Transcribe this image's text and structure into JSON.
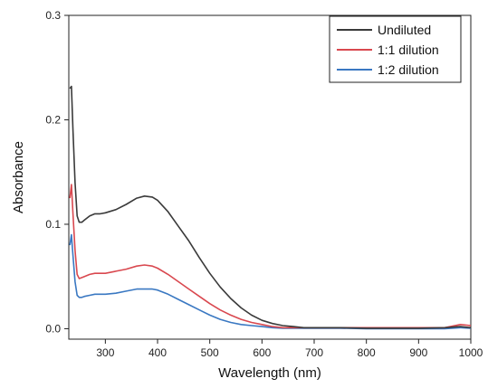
{
  "chart_data": {
    "type": "line",
    "title": "",
    "xlabel": "Wavelength (nm)",
    "ylabel": "Absorbance",
    "xlim": [
      230,
      1000
    ],
    "ylim": [
      -0.01,
      0.3
    ],
    "xticks": [
      300,
      400,
      500,
      600,
      700,
      800,
      900,
      1000
    ],
    "xtick_labels": [
      "300",
      "400",
      "500",
      "600",
      "700",
      "800",
      "900",
      "1000"
    ],
    "yticks": [
      0.0,
      0.1,
      0.2,
      0.3
    ],
    "ytick_labels": [
      "0.0",
      "0.1",
      "0.2",
      "0.3"
    ],
    "grid": false,
    "legend_position": "top-right",
    "x": [
      232,
      235,
      238,
      242,
      246,
      250,
      255,
      260,
      270,
      280,
      290,
      300,
      320,
      340,
      360,
      375,
      390,
      400,
      420,
      440,
      460,
      480,
      500,
      520,
      540,
      560,
      580,
      600,
      620,
      640,
      660,
      680,
      700,
      750,
      800,
      850,
      900,
      950,
      980,
      1000
    ],
    "series": [
      {
        "name": "Undiluted",
        "color": "#3a3a3a",
        "values": [
          0.23,
          0.232,
          0.19,
          0.14,
          0.108,
          0.102,
          0.102,
          0.104,
          0.108,
          0.11,
          0.11,
          0.111,
          0.114,
          0.119,
          0.125,
          0.127,
          0.126,
          0.123,
          0.112,
          0.098,
          0.084,
          0.068,
          0.053,
          0.04,
          0.029,
          0.02,
          0.013,
          0.008,
          0.005,
          0.003,
          0.002,
          0.001,
          0.001,
          0.001,
          0.0005,
          0.0005,
          0.0005,
          0.001,
          0.002,
          0.001
        ]
      },
      {
        "name": "1:1 dilution",
        "color": "#d9484f",
        "values": [
          0.125,
          0.138,
          0.11,
          0.075,
          0.052,
          0.048,
          0.049,
          0.05,
          0.052,
          0.053,
          0.053,
          0.053,
          0.055,
          0.057,
          0.06,
          0.061,
          0.06,
          0.058,
          0.052,
          0.045,
          0.038,
          0.031,
          0.024,
          0.018,
          0.013,
          0.009,
          0.006,
          0.004,
          0.002,
          0.001,
          0.001,
          0.001,
          0.001,
          0.001,
          0.001,
          0.001,
          0.001,
          0.001,
          0.004,
          0.003
        ]
      },
      {
        "name": "1:2 dilution",
        "color": "#3a78c2",
        "values": [
          0.08,
          0.09,
          0.07,
          0.045,
          0.032,
          0.03,
          0.03,
          0.031,
          0.032,
          0.033,
          0.033,
          0.033,
          0.034,
          0.036,
          0.038,
          0.038,
          0.038,
          0.037,
          0.033,
          0.028,
          0.023,
          0.018,
          0.013,
          0.009,
          0.006,
          0.004,
          0.003,
          0.002,
          0.001,
          0.0005,
          0.0005,
          0.0005,
          0.0005,
          0.0005,
          0.0,
          0.0,
          0.0,
          0.0,
          0.001,
          0.0005
        ]
      }
    ]
  }
}
